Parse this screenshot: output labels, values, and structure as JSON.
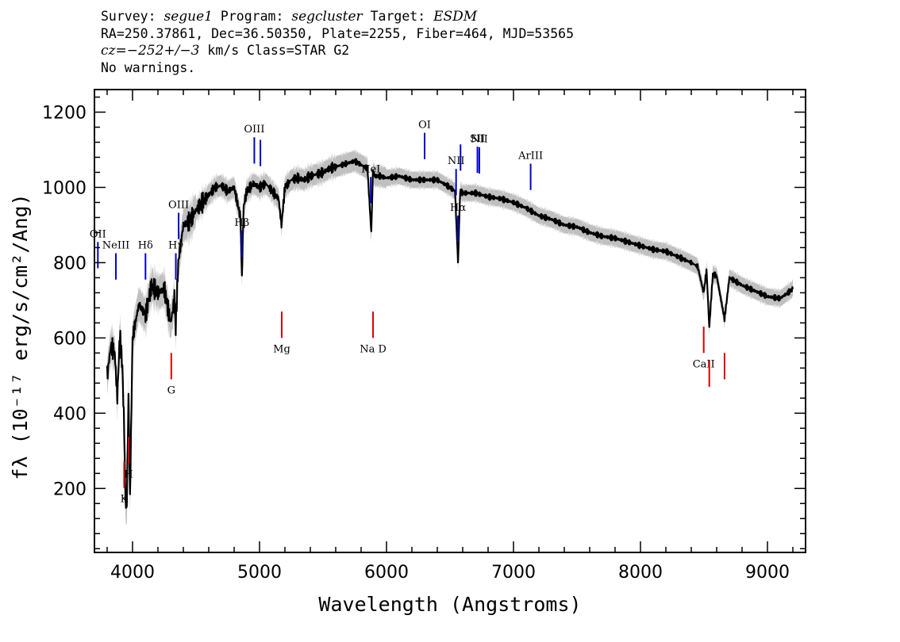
{
  "header": {
    "line1": {
      "survey_label": "Survey:",
      "survey": "segue1",
      "program_label": "Program:",
      "program": "segcluster",
      "target_label": "Target:",
      "target": "ESDM"
    },
    "line2": "RA=250.37861, Dec=36.50350, Plate=2255, Fiber=464, MJD=53565",
    "line3": {
      "cz": "cz=−252+/−3",
      "rest": "km/s Class=STAR G2"
    },
    "line4": "No warnings."
  },
  "chart_data": {
    "type": "line",
    "xlabel": "Wavelength (Angstroms)",
    "ylabel": "fλ (10⁻¹⁷ erg/s/cm²/Ang)",
    "xlim": [
      3700,
      9300
    ],
    "ylim": [
      30,
      1260
    ],
    "x_ticks": [
      4000,
      5000,
      6000,
      7000,
      8000,
      9000
    ],
    "y_ticks": [
      200,
      400,
      600,
      800,
      1000,
      1200
    ],
    "colors": {
      "spectrum": "#000000",
      "error_band": "#c0c0c0",
      "emission_marker": "#0000cc",
      "absorption_marker": "#dd0000"
    },
    "spectrum": {
      "wavelength": [
        3800,
        3830,
        3860,
        3880,
        3900,
        3920,
        3935,
        3945,
        3955,
        3968,
        3980,
        4000,
        4050,
        4102,
        4150,
        4200,
        4250,
        4300,
        4330,
        4340,
        4360,
        4400,
        4450,
        4500,
        4550,
        4600,
        4650,
        4700,
        4750,
        4800,
        4850,
        4861,
        4875,
        4900,
        4950,
        5000,
        5050,
        5100,
        5150,
        5173,
        5200,
        5250,
        5300,
        5350,
        5400,
        5450,
        5500,
        5550,
        5600,
        5650,
        5700,
        5750,
        5800,
        5850,
        5880,
        5893,
        5910,
        5950,
        6000,
        6100,
        6200,
        6300,
        6400,
        6500,
        6540,
        6563,
        6580,
        6600,
        6700,
        6800,
        6900,
        7000,
        7100,
        7200,
        7300,
        7400,
        7500,
        7600,
        7700,
        7800,
        7900,
        8000,
        8100,
        8200,
        8300,
        8400,
        8450,
        8498,
        8520,
        8542,
        8570,
        8600,
        8662,
        8700,
        8800,
        8900,
        9000,
        9100,
        9200
      ],
      "flux": [
        500,
        580,
        560,
        440,
        610,
        520,
        350,
        150,
        160,
        450,
        170,
        600,
        690,
        660,
        740,
        720,
        730,
        640,
        700,
        630,
        800,
        900,
        910,
        940,
        960,
        980,
        1000,
        1005,
        990,
        1000,
        920,
        760,
        950,
        990,
        1010,
        1000,
        1010,
        990,
        970,
        900,
        1000,
        1020,
        1025,
        1020,
        1030,
        1035,
        1040,
        1050,
        1055,
        1060,
        1065,
        1070,
        1060,
        1050,
        880,
        1040,
        1030,
        1030,
        1025,
        1030,
        1020,
        1020,
        1020,
        1000,
        990,
        800,
        990,
        985,
        985,
        975,
        970,
        960,
        945,
        925,
        915,
        900,
        895,
        880,
        870,
        865,
        855,
        845,
        835,
        830,
        815,
        800,
        790,
        720,
        780,
        630,
        770,
        765,
        650,
        760,
        740,
        725,
        710,
        705,
        730
      ]
    },
    "emission_lines": [
      {
        "label": "OII",
        "wavelength": 3727
      },
      {
        "label": "NeIII",
        "wavelength": 3869
      },
      {
        "label": "Hδ",
        "wavelength": 4102
      },
      {
        "label": "Hγ",
        "wavelength": 4341
      },
      {
        "label": "OIII",
        "wavelength": 4363
      },
      {
        "label": "Hβ",
        "wavelength": 4861
      },
      {
        "label": "OIII",
        "wavelength": 4959
      },
      {
        "label": "",
        "wavelength": 5007
      },
      {
        "label": "HeI",
        "wavelength": 5876
      },
      {
        "label": "OI",
        "wavelength": 6300
      },
      {
        "label": "NII",
        "wavelength": 6548
      },
      {
        "label": "Hα",
        "wavelength": 6563
      },
      {
        "label": "",
        "wavelength": 6583
      },
      {
        "label": "SII",
        "wavelength": 6716
      },
      {
        "label": "NII",
        "wavelength": 6731
      },
      {
        "label": "ArIII",
        "wavelength": 7135
      }
    ],
    "absorption_lines": [
      {
        "label": "K",
        "wavelength": 3934
      },
      {
        "label": "H",
        "wavelength": 3969
      },
      {
        "label": "G",
        "wavelength": 4305
      },
      {
        "label": "Mg",
        "wavelength": 5175
      },
      {
        "label": "Na D",
        "wavelength": 5894
      },
      {
        "label": "CaII",
        "wavelength": 8498
      },
      {
        "label": "",
        "wavelength": 8542
      },
      {
        "label": "",
        "wavelength": 8662
      }
    ]
  }
}
